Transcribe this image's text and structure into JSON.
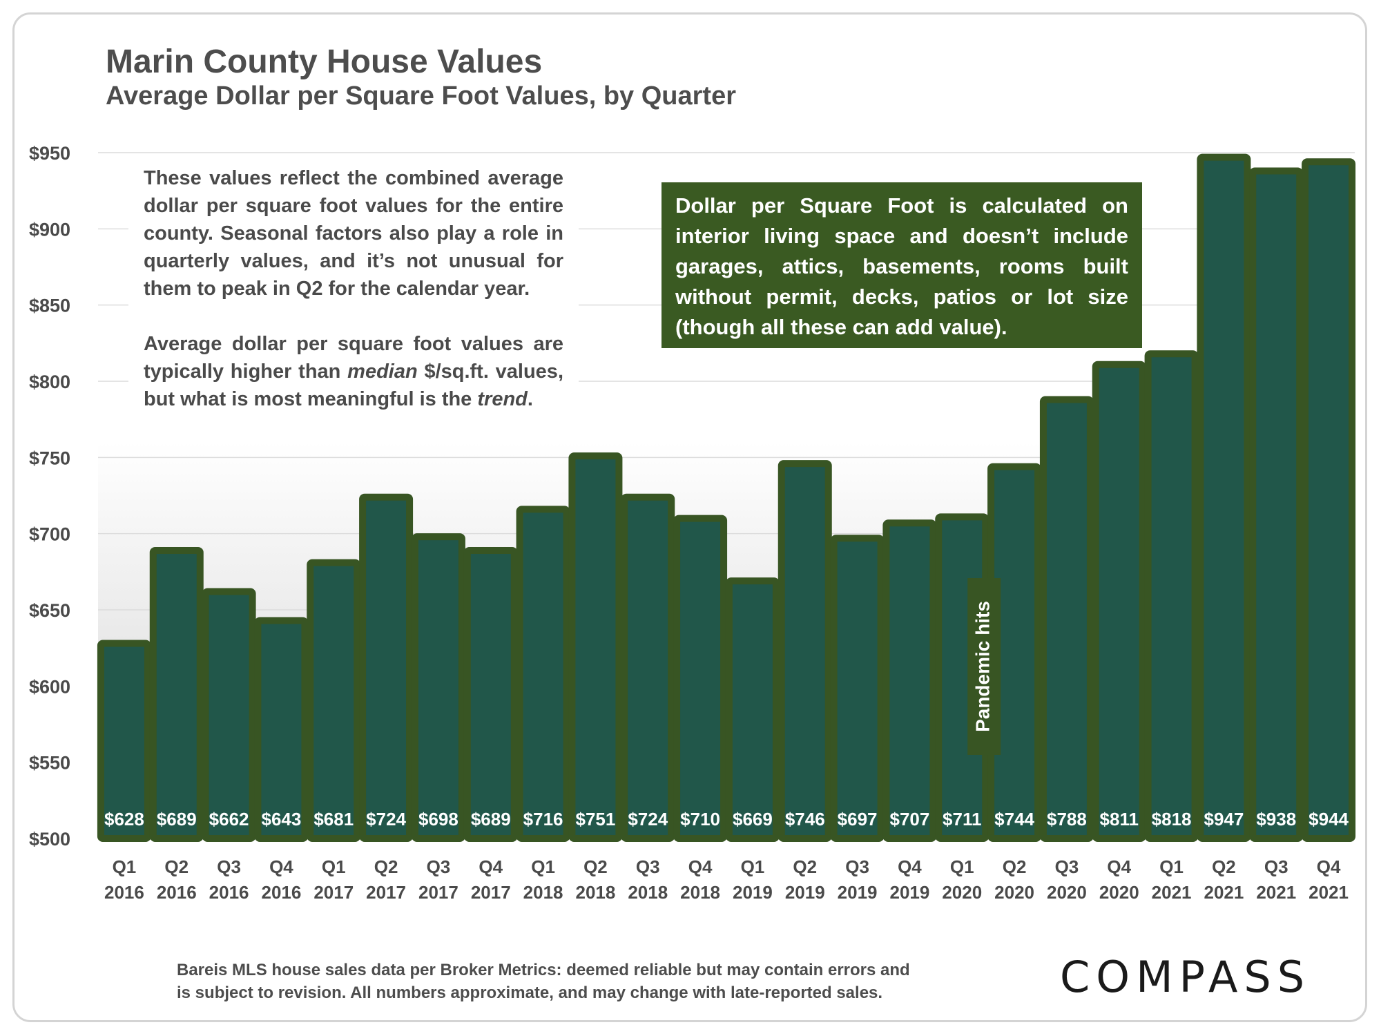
{
  "title": "Marin County House Values",
  "subtitle": "Average Dollar per Square Foot Values, by Quarter",
  "note_left": {
    "p1": "These values reflect the combined average dollar per square foot values for the entire county. Seasonal factors also play a role in quarterly values, and it’s not unusual for them to peak in Q2 for the calendar year.",
    "p2_a": "Average dollar per square foot values are typically higher than ",
    "p2_b": "median",
    "p2_c": " $/sq.ft. values, but what is most meaningful is the ",
    "p2_d": "trend",
    "p2_e": "."
  },
  "note_right": "Dollar per Square Foot is calculated on interior living space and doesn’t include garages, attics, basements, rooms built without permit, decks, patios or lot size (though all these can add value).",
  "footnote": {
    "line1": "Bareis MLS house sales data per Broker Metrics:  deemed reliable but may contain errors and",
    "line2": "is subject to revision. All numbers approximate, and may change with late-reported sales."
  },
  "logo": "COMPASS",
  "colors": {
    "bar_border": "#385523",
    "bar_fill": "#21574a",
    "label_text": "#ffffff",
    "axis_text": "#4a4a4a",
    "grid": "#dcdcdc",
    "pandemic_box": "#385523"
  },
  "chart_data": {
    "type": "bar",
    "categories": [
      "Q1 2016",
      "Q2 2016",
      "Q3 2016",
      "Q4 2016",
      "Q1 2017",
      "Q2 2017",
      "Q3 2017",
      "Q4 2017",
      "Q1 2018",
      "Q2 2018",
      "Q3 2018",
      "Q4 2018",
      "Q1 2019",
      "Q2 2019",
      "Q3 2019",
      "Q4 2019",
      "Q1 2020",
      "Q2 2020",
      "Q3 2020",
      "Q4 2020",
      "Q1 2021",
      "Q2 2021",
      "Q3 2021",
      "Q4 2021"
    ],
    "category_lines": [
      [
        "Q1",
        "2016"
      ],
      [
        "Q2",
        "2016"
      ],
      [
        "Q3",
        "2016"
      ],
      [
        "Q4",
        "2016"
      ],
      [
        "Q1",
        "2017"
      ],
      [
        "Q2",
        "2017"
      ],
      [
        "Q3",
        "2017"
      ],
      [
        "Q4",
        "2017"
      ],
      [
        "Q1",
        "2018"
      ],
      [
        "Q2",
        "2018"
      ],
      [
        "Q3",
        "2018"
      ],
      [
        "Q4",
        "2018"
      ],
      [
        "Q1",
        "2019"
      ],
      [
        "Q2",
        "2019"
      ],
      [
        "Q3",
        "2019"
      ],
      [
        "Q4",
        "2019"
      ],
      [
        "Q1",
        "2020"
      ],
      [
        "Q2",
        "2020"
      ],
      [
        "Q3",
        "2020"
      ],
      [
        "Q4",
        "2020"
      ],
      [
        "Q1",
        "2021"
      ],
      [
        "Q2",
        "2021"
      ],
      [
        "Q3",
        "2021"
      ],
      [
        "Q4",
        "2021"
      ]
    ],
    "values": [
      628,
      689,
      662,
      643,
      681,
      724,
      698,
      689,
      716,
      751,
      724,
      710,
      669,
      746,
      697,
      707,
      711,
      744,
      788,
      811,
      818,
      947,
      938,
      944
    ],
    "data_labels": [
      "$628",
      "$689",
      "$662",
      "$643",
      "$681",
      "$724",
      "$698",
      "$689",
      "$716",
      "$751",
      "$724",
      "$710",
      "$669",
      "$746",
      "$697",
      "$707",
      "$711",
      "$744",
      "$788",
      "$811",
      "$818",
      "$947",
      "$938",
      "$944"
    ],
    "ylim": [
      500,
      950
    ],
    "yticks": [
      500,
      550,
      600,
      650,
      700,
      750,
      800,
      850,
      900,
      950
    ],
    "ytick_labels": [
      "$500",
      "$550",
      "$600",
      "$650",
      "$700",
      "$750",
      "$800",
      "$850",
      "$900",
      "$950"
    ],
    "grid": true,
    "legend": "none",
    "annotations": [
      {
        "text": "Pandemic hits",
        "category": "Q1 2020",
        "orientation": "vertical"
      }
    ]
  }
}
